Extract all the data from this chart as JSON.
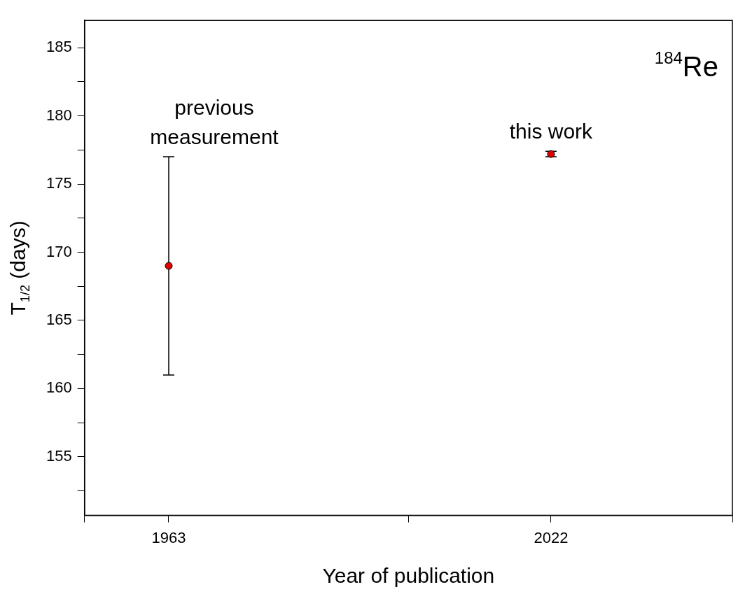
{
  "chart_data": {
    "type": "scatter",
    "xlabel": "Year of publication",
    "ylabel": "T$_{1/2}$ (days)",
    "x": [
      1963,
      2022
    ],
    "series": [
      {
        "color": "#e00000",
        "values": [
          169,
          177.2
        ],
        "errors": [
          8,
          0.2
        ]
      }
    ],
    "xlim": [
      1950,
      2050
    ],
    "xticks": [
      {
        "value": 1950,
        "label": null
      },
      1963,
      {
        "value": 2000,
        "label": null
      },
      2022,
      {
        "value": 2050,
        "label": null
      }
    ],
    "ylim": [
      150.7,
      187
    ],
    "yticks": [
      {
        "value": 152.5,
        "label": null
      },
      155,
      {
        "value": 157.5,
        "label": null
      },
      160,
      {
        "value": 162.5,
        "label": null
      },
      165,
      {
        "value": 167.5,
        "label": null
      },
      170,
      {
        "value": 172.5,
        "label": null
      },
      175,
      {
        "value": 177.5,
        "label": null
      },
      180,
      {
        "value": 182.5,
        "label": null
      },
      185
    ],
    "annotations": [
      "previous\nmeasurement",
      "this work",
      "$^{184}$Re"
    ],
    "marker": "circle",
    "grid": false,
    "legend": false
  }
}
